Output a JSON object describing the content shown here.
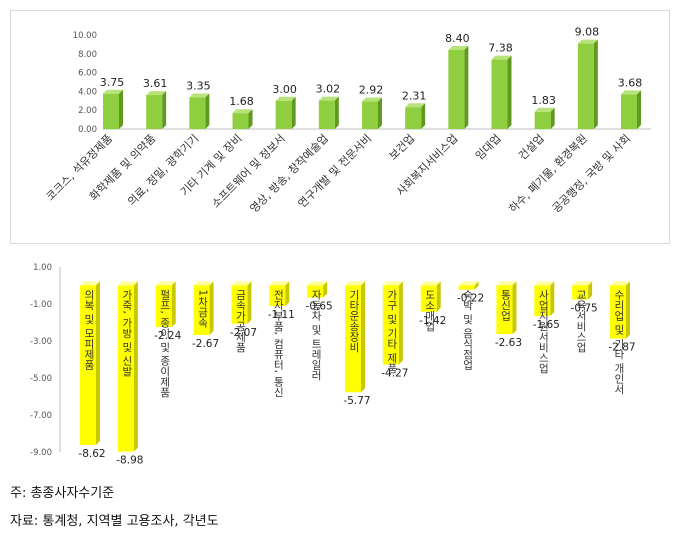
{
  "chart_data": [
    {
      "type": "bar",
      "categories": [
        "코크스, 석유정제품",
        "화학제품 및 의약품",
        "의료, 정밀, 광학기기",
        "기타 기계 및 장비",
        "소프트웨어 및 정보서",
        "영상, 방송, 창작예술업",
        "연구개발 및 전문서비",
        "보건업",
        "사회복지서비스업",
        "임대업",
        "건설업",
        "하수, 폐기물, 환경복원",
        "공공행정, 국방 및 사회"
      ],
      "values": [
        3.75,
        3.61,
        3.35,
        1.68,
        3.0,
        3.02,
        2.92,
        2.31,
        8.4,
        7.38,
        1.83,
        9.08,
        3.68
      ],
      "value_labels": [
        "3.75",
        "3.61",
        "3.35",
        "1.68",
        "3.00",
        "3.02",
        "2.92",
        "2.31",
        "8.40",
        "7.38",
        "1.83",
        "9.08",
        "3.68"
      ],
      "y_ticks": [
        "0.00",
        "2.00",
        "4.00",
        "6.00",
        "8.00",
        "10.00"
      ],
      "ylim": [
        0,
        10
      ],
      "colors": {
        "bar": "#8fce3f",
        "bar_side": "#5f9a1f",
        "bar_top": "#b7e37a"
      },
      "grid": false
    },
    {
      "type": "bar",
      "categories": [
        "의복 및 모피제품",
        "가죽, 가방 및 신발",
        "펄프, 종이 및 종이제품",
        "1차금속",
        "금속가공제품",
        "전자부품, 컴퓨터, 통신",
        "자동차 및 트레일러",
        "기타운송장비",
        "가구 및 기타 제품",
        "도소매업",
        "숙박 및 음식점업",
        "통신업",
        "사업지원서비스업",
        "교육서비스업",
        "수리업 및 기타 개인서"
      ],
      "values": [
        -8.62,
        -8.98,
        -2.24,
        -2.67,
        -2.07,
        -1.11,
        -0.65,
        -5.77,
        -4.27,
        -1.42,
        -0.22,
        -2.63,
        -1.65,
        -0.75,
        -2.87
      ],
      "value_labels": [
        "-8.62",
        "-8.98",
        "-2.24",
        "-2.67",
        "-2.07",
        "-1.11",
        "-0.65",
        "-5.77",
        "-4.27",
        "-1.42",
        "-0.22",
        "-2.63",
        "-1.65",
        "-0.75",
        "-2.87"
      ],
      "y_ticks": [
        "1.00",
        "-1.00",
        "-3.00",
        "-5.00",
        "-7.00",
        "-9.00"
      ],
      "ylim": [
        -9,
        1
      ],
      "colors": {
        "bar": "#ffff00",
        "bar_side": "#c8c800",
        "bar_top": "#ffff99"
      },
      "grid": false
    }
  ],
  "notes": {
    "basis": "주: 총종사자수기준",
    "source": "자료: 통계청, 지역별 고용조사, 각년도"
  }
}
